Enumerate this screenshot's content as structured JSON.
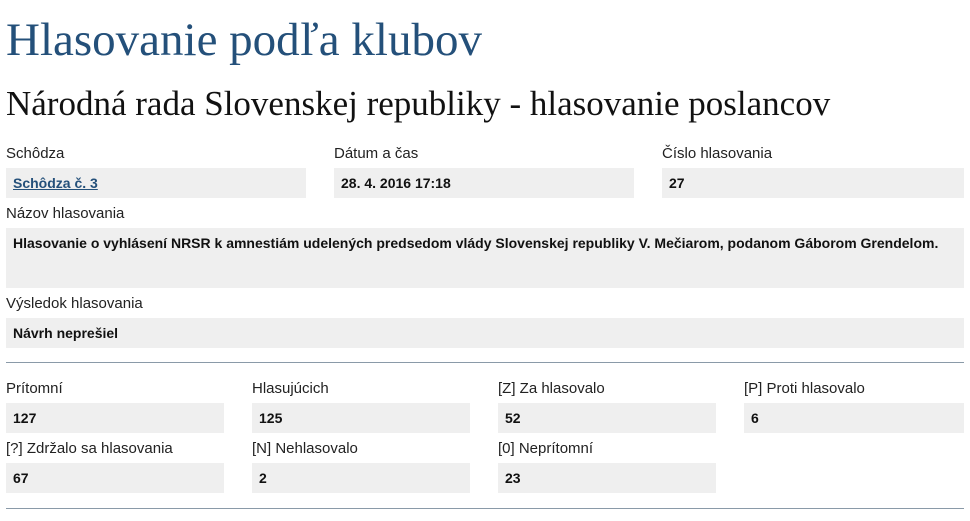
{
  "page": {
    "title": "Hlasovanie podľa klubov",
    "subtitle": "Národná rada Slovenskej republiky - hlasovanie poslancov"
  },
  "vote_info": {
    "session_label": "Schôdza",
    "session_value": "Schôdza č. 3",
    "datetime_label": "Dátum a čas",
    "datetime_value": "28. 4. 2016 17:18",
    "number_label": "Číslo hlasovania",
    "number_value": "27",
    "name_label": "Názov hlasovania",
    "name_value": "Hlasovanie o vyhlásení NRSR k amnestiám udelených predsedom vlády Slovenskej republiky V. Mečiarom, podanom Gáborom Grendelom.",
    "result_label": "Výsledok hlasovania",
    "result_value": "Návrh neprešiel"
  },
  "stats": {
    "present_label": "Prítomní",
    "present_value": "127",
    "voting_label": "Hlasujúcich",
    "voting_value": "125",
    "for_label": "[Z] Za hlasovalo",
    "for_value": "52",
    "against_label": "[P] Proti hlasovalo",
    "against_value": "6",
    "abstain_label": "[?] Zdržalo sa hlasovania",
    "abstain_value": "67",
    "notvoted_label": "[N] Nehlasovalo",
    "notvoted_value": "2",
    "absent_label": "[0] Neprítomní",
    "absent_value": "23"
  },
  "colors": {
    "title": "#24507a",
    "value_bg": "#efefef",
    "rule": "#8a9aa8"
  }
}
